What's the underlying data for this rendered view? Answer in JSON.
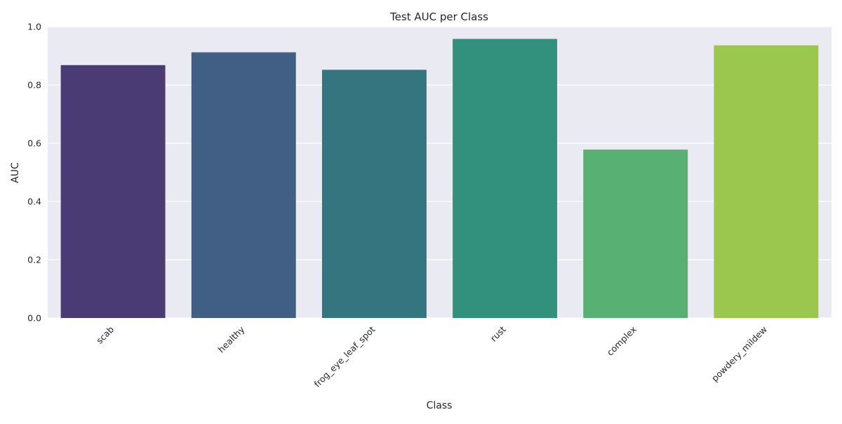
{
  "chart_data": {
    "type": "bar",
    "title": "Test AUC per Class",
    "xlabel": "Class",
    "ylabel": "AUC",
    "categories": [
      "scab",
      "healthy",
      "frog_eye_leaf_spot",
      "rust",
      "complex",
      "powdery_mildew"
    ],
    "values": [
      0.868,
      0.912,
      0.852,
      0.958,
      0.578,
      0.936
    ],
    "colors": [
      "#4a3b74",
      "#415e85",
      "#347580",
      "#31917c",
      "#58b173",
      "#9cc74f"
    ],
    "ylim": [
      0,
      1.0
    ],
    "yticks": [
      0.0,
      0.2,
      0.4,
      0.6,
      0.8,
      1.0
    ],
    "ytick_labels": [
      "0.0",
      "0.2",
      "0.4",
      "0.6",
      "0.8",
      "1.0"
    ],
    "grid": true,
    "background": "#eaeaf2",
    "grid_color": "#ffffff"
  }
}
